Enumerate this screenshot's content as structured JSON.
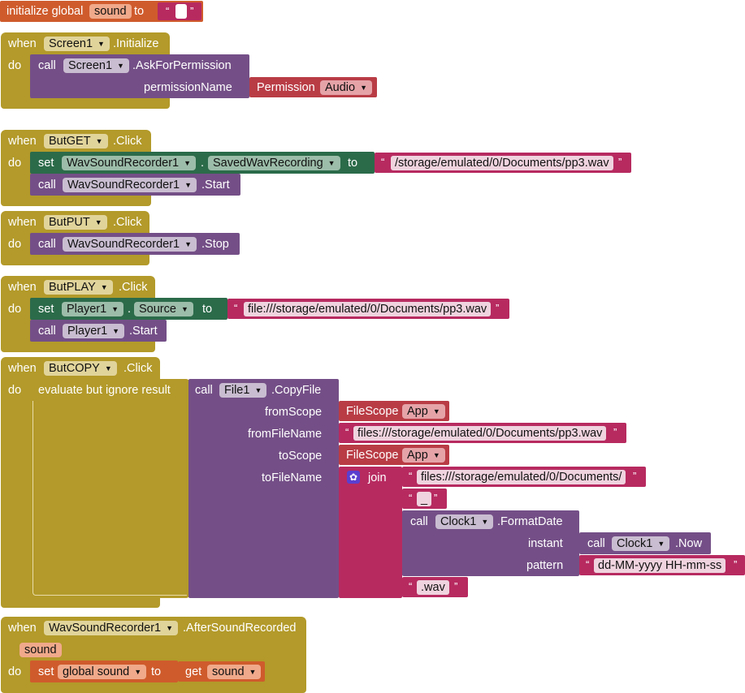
{
  "kw": {
    "initialize_global": "initialize global",
    "to": "to",
    "when": "when",
    "do": "do",
    "call": "call",
    "set": "set",
    "get": "get",
    "join": "join",
    "evaluate": "evaluate but ignore result",
    "dot": ".",
    "open_quote": "“",
    "close_quote": "”"
  },
  "global_init": {
    "name": "sound"
  },
  "screen_init": {
    "component": "Screen1",
    "event": ".Initialize",
    "method_component": "Screen1",
    "method": ".AskForPermission",
    "param_label": "permissionName",
    "permission_kw": "Permission",
    "permission_value": "Audio"
  },
  "butget": {
    "component": "ButGET",
    "event": ".Click",
    "set_component": "WavSoundRecorder1",
    "set_property": "SavedWavRecording",
    "path": "/storage/emulated/0/Documents/pp3.wav",
    "call_component": "WavSoundRecorder1",
    "call_method": ".Start"
  },
  "butput": {
    "component": "ButPUT",
    "event": ".Click",
    "call_component": "WavSoundRecorder1",
    "call_method": ".Stop"
  },
  "butplay": {
    "component": "ButPLAY",
    "event": ".Click",
    "set_component": "Player1",
    "set_property": "Source",
    "path": "file:///storage/emulated/0/Documents/pp3.wav",
    "call_component": "Player1",
    "call_method": ".Start"
  },
  "butcopy": {
    "component": "ButCOPY",
    "event": ".Click",
    "file_component": "File1",
    "file_method": ".CopyFile",
    "from_scope_label": "fromScope",
    "from_name_label": "fromFileName",
    "to_scope_label": "toScope",
    "to_name_label": "toFileName",
    "filescope_kw": "FileScope",
    "scope_value": "App",
    "from_path": "files:///storage/emulated/0/Documents/pp3.wav",
    "join_1": "files:///storage/emulated/0/Documents/",
    "join_2": "_",
    "clock_component": "Clock1",
    "format_method": ".FormatDate",
    "instant_label": "instant",
    "pattern_label": "pattern",
    "now_component": "Clock1",
    "now_method": ".Now",
    "pattern": "dd-MM-yyyy HH-mm-ss",
    "join_4": ".wav"
  },
  "after": {
    "component": "WavSoundRecorder1",
    "event": ".AfterSoundRecorded",
    "param": "sound",
    "set_target": "global sound",
    "get_var": "sound"
  },
  "colors": {
    "event": "#b39a2a",
    "procedure": "#744f87",
    "property_set": "#2b6b4a",
    "helper": "#b93c45",
    "text": "#b72a60",
    "variable": "#cf5b2c"
  }
}
